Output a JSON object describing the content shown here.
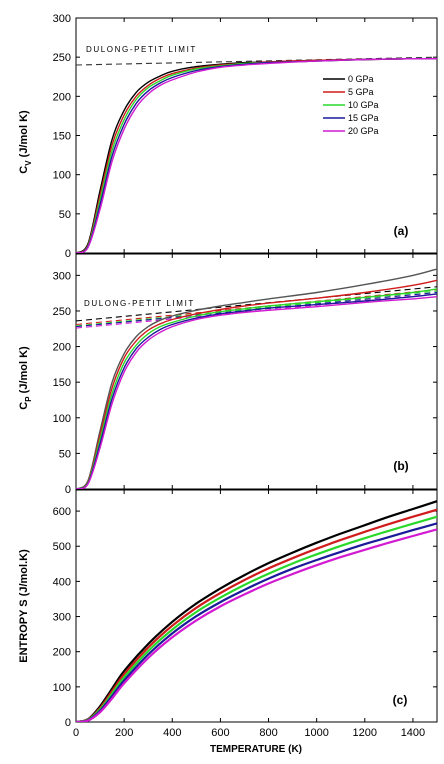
{
  "chart_data": [
    {
      "type": "line",
      "panel_label": "(a)",
      "ylabel_main": "C",
      "ylabel_sub": "V",
      "ylabel_rest": " (J/mol K)",
      "ylim": [
        0,
        300
      ],
      "yticks": [
        "0",
        "50",
        "100",
        "150",
        "200",
        "250",
        "300"
      ],
      "xlim": [
        0,
        1500
      ],
      "grid": false,
      "legend_position": "top-right",
      "annotation": "DULONG-PETIT LIMIT",
      "reference_line": {
        "x": [
          0,
          1500
        ],
        "y": [
          240,
          250
        ],
        "style": "dashed"
      },
      "series": [
        {
          "name": "0 GPa",
          "color": "#000000",
          "x": [
            0,
            50,
            100,
            150,
            200,
            250,
            300,
            350,
            400,
            500,
            600,
            700,
            800,
            1000,
            1200,
            1400,
            1500
          ],
          "y": [
            0,
            12,
            80,
            145,
            182,
            205,
            218,
            226,
            232,
            238,
            241,
            243,
            244,
            246,
            247,
            248,
            248
          ]
        },
        {
          "name": "5 GPa",
          "color": "#d01c1c",
          "x": [
            0,
            50,
            100,
            150,
            200,
            250,
            300,
            350,
            400,
            500,
            600,
            700,
            800,
            1000,
            1200,
            1400,
            1500
          ],
          "y": [
            0,
            10,
            74,
            138,
            176,
            200,
            214,
            223,
            229,
            236,
            240,
            242,
            244,
            246,
            247,
            248,
            248
          ]
        },
        {
          "name": "10 GPa",
          "color": "#2ad82a",
          "x": [
            0,
            50,
            100,
            150,
            200,
            250,
            300,
            350,
            400,
            500,
            600,
            700,
            800,
            1000,
            1200,
            1400,
            1500
          ],
          "y": [
            0,
            9,
            68,
            131,
            170,
            196,
            211,
            220,
            227,
            235,
            239,
            242,
            243,
            245,
            247,
            248,
            248
          ]
        },
        {
          "name": "15 GPa",
          "color": "#1a1a9a",
          "x": [
            0,
            50,
            100,
            150,
            200,
            250,
            300,
            350,
            400,
            500,
            600,
            700,
            800,
            1000,
            1200,
            1400,
            1500
          ],
          "y": [
            0,
            8,
            62,
            124,
            164,
            191,
            207,
            217,
            224,
            233,
            238,
            241,
            243,
            245,
            247,
            248,
            248
          ]
        },
        {
          "name": "20 GPa",
          "color": "#d21ad2",
          "x": [
            0,
            50,
            100,
            150,
            200,
            250,
            300,
            350,
            400,
            500,
            600,
            700,
            800,
            1000,
            1200,
            1400,
            1500
          ],
          "y": [
            0,
            7,
            56,
            117,
            158,
            186,
            203,
            214,
            221,
            231,
            237,
            240,
            242,
            245,
            247,
            248,
            248
          ]
        }
      ]
    },
    {
      "type": "line",
      "panel_label": "(b)",
      "ylabel_main": "C",
      "ylabel_sub": "P",
      "ylabel_rest": " (J/mol K)",
      "ylim": [
        0,
        330
      ],
      "yticks": [
        "0",
        "50",
        "100",
        "150",
        "200",
        "250",
        "300"
      ],
      "xlim": [
        0,
        1500
      ],
      "grid": false,
      "annotation": "DULONG-PETIT LIMIT",
      "series": [
        {
          "name": "0 GPa",
          "color": "#555555",
          "x": [
            0,
            50,
            100,
            150,
            200,
            250,
            300,
            350,
            400,
            500,
            600,
            700,
            800,
            1000,
            1200,
            1400,
            1500
          ],
          "y": [
            0,
            12,
            82,
            150,
            190,
            214,
            228,
            237,
            243,
            251,
            257,
            262,
            267,
            276,
            287,
            300,
            309
          ]
        },
        {
          "name": "5 GPa",
          "color": "#d01c1c",
          "x": [
            0,
            50,
            100,
            150,
            200,
            250,
            300,
            350,
            400,
            500,
            600,
            700,
            800,
            1000,
            1200,
            1400,
            1500
          ],
          "y": [
            0,
            10,
            76,
            142,
            184,
            208,
            223,
            232,
            238,
            246,
            252,
            257,
            261,
            268,
            276,
            286,
            293
          ]
        },
        {
          "name": "10 GPa",
          "color": "#2ad82a",
          "x": [
            0,
            50,
            100,
            150,
            200,
            250,
            300,
            350,
            400,
            500,
            600,
            700,
            800,
            1000,
            1200,
            1400,
            1500
          ],
          "y": [
            0,
            9,
            70,
            134,
            177,
            202,
            218,
            228,
            234,
            243,
            249,
            253,
            257,
            263,
            269,
            276,
            281
          ]
        },
        {
          "name": "15 GPa",
          "color": "#1a1a9a",
          "x": [
            0,
            50,
            100,
            150,
            200,
            250,
            300,
            350,
            400,
            500,
            600,
            700,
            800,
            1000,
            1200,
            1400,
            1500
          ],
          "y": [
            0,
            8,
            64,
            127,
            170,
            197,
            213,
            224,
            231,
            240,
            246,
            250,
            254,
            259,
            264,
            270,
            274
          ]
        },
        {
          "name": "20 GPa",
          "color": "#d21ad2",
          "x": [
            0,
            50,
            100,
            150,
            200,
            250,
            300,
            350,
            400,
            500,
            600,
            700,
            800,
            1000,
            1200,
            1400,
            1500
          ],
          "y": [
            0,
            7,
            58,
            120,
            164,
            192,
            209,
            220,
            228,
            238,
            244,
            248,
            251,
            256,
            262,
            267,
            270
          ]
        }
      ],
      "reference_lines": [
        {
          "color": "#000000",
          "x": [
            0,
            1500
          ],
          "y": [
            236,
            284
          ],
          "style": "dashed"
        },
        {
          "color": "#d01c1c",
          "x": [
            0,
            1500
          ],
          "y": [
            231,
            280
          ],
          "style": "dashed"
        },
        {
          "color": "#2ad82a",
          "x": [
            0,
            1500
          ],
          "y": [
            229,
            278
          ],
          "style": "dashed"
        },
        {
          "color": "#1a1a9a",
          "x": [
            0,
            1500
          ],
          "y": [
            228,
            276
          ],
          "style": "dashed"
        },
        {
          "color": "#d21ad2",
          "x": [
            0,
            1500
          ],
          "y": [
            226,
            274
          ],
          "style": "dashed"
        }
      ]
    },
    {
      "type": "line",
      "panel_label": "(c)",
      "ylabel": "ENTROPY  S (J/mol.K)",
      "xlabel": "TEMPERATURE (K)",
      "ylim": [
        0,
        660
      ],
      "yticks": [
        "0",
        "100",
        "200",
        "300",
        "400",
        "500",
        "600"
      ],
      "xlim": [
        0,
        1500
      ],
      "xticks": [
        "0",
        "200",
        "400",
        "600",
        "800",
        "1000",
        "1200",
        "1400"
      ],
      "grid": false,
      "series": [
        {
          "name": "0 GPa",
          "color": "#000000",
          "x": [
            0,
            50,
            100,
            150,
            200,
            300,
            400,
            500,
            600,
            700,
            800,
            900,
            1000,
            1100,
            1200,
            1300,
            1400,
            1500
          ],
          "y": [
            0,
            8,
            45,
            95,
            145,
            222,
            285,
            337,
            380,
            418,
            452,
            482,
            510,
            536,
            560,
            584,
            606,
            628
          ]
        },
        {
          "name": "5 GPa",
          "color": "#d01c1c",
          "x": [
            0,
            50,
            100,
            150,
            200,
            300,
            400,
            500,
            600,
            700,
            800,
            900,
            1000,
            1100,
            1200,
            1300,
            1400,
            1500
          ],
          "y": [
            0,
            7,
            40,
            88,
            136,
            212,
            274,
            325,
            367,
            404,
            437,
            466,
            493,
            518,
            541,
            563,
            584,
            604
          ]
        },
        {
          "name": "10 GPa",
          "color": "#2ad82a",
          "x": [
            0,
            50,
            100,
            150,
            200,
            300,
            400,
            500,
            600,
            700,
            800,
            900,
            1000,
            1100,
            1200,
            1300,
            1400,
            1500
          ],
          "y": [
            0,
            6,
            36,
            81,
            127,
            202,
            263,
            313,
            354,
            390,
            422,
            451,
            477,
            501,
            523,
            544,
            564,
            584
          ]
        },
        {
          "name": "15 GPa",
          "color": "#1a1a9a",
          "x": [
            0,
            50,
            100,
            150,
            200,
            300,
            400,
            500,
            600,
            700,
            800,
            900,
            1000,
            1100,
            1200,
            1300,
            1400,
            1500
          ],
          "y": [
            0,
            5,
            32,
            74,
            118,
            192,
            252,
            301,
            341,
            376,
            408,
            436,
            461,
            484,
            506,
            526,
            546,
            565
          ]
        },
        {
          "name": "20 GPa",
          "color": "#d21ad2",
          "x": [
            0,
            50,
            100,
            150,
            200,
            300,
            400,
            500,
            600,
            700,
            800,
            900,
            1000,
            1100,
            1200,
            1300,
            1400,
            1500
          ],
          "y": [
            0,
            4,
            28,
            67,
            110,
            182,
            241,
            289,
            329,
            363,
            394,
            421,
            446,
            469,
            490,
            510,
            529,
            548
          ]
        }
      ]
    }
  ]
}
